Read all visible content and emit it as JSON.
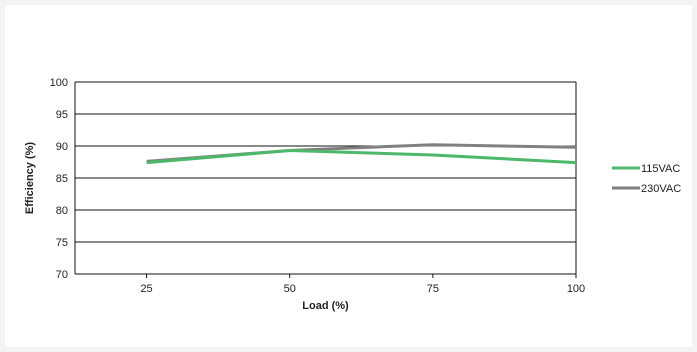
{
  "chart_data": {
    "type": "line",
    "title": "",
    "xlabel": "Load (%)",
    "ylabel": "Efficiency (%)",
    "x": [
      25,
      50,
      75,
      100
    ],
    "xlim": [
      12.5,
      100
    ],
    "ylim": [
      70,
      100
    ],
    "yticks": [
      70,
      75,
      80,
      85,
      90,
      95,
      100
    ],
    "grid": true,
    "legend": "right",
    "series": [
      {
        "name": "115VAC",
        "color": "#4db86a",
        "values": [
          87.4,
          89.3,
          88.6,
          87.4
        ]
      },
      {
        "name": "230VAC",
        "color": "#808080",
        "values": [
          87.6,
          89.3,
          90.2,
          89.8
        ]
      }
    ]
  }
}
